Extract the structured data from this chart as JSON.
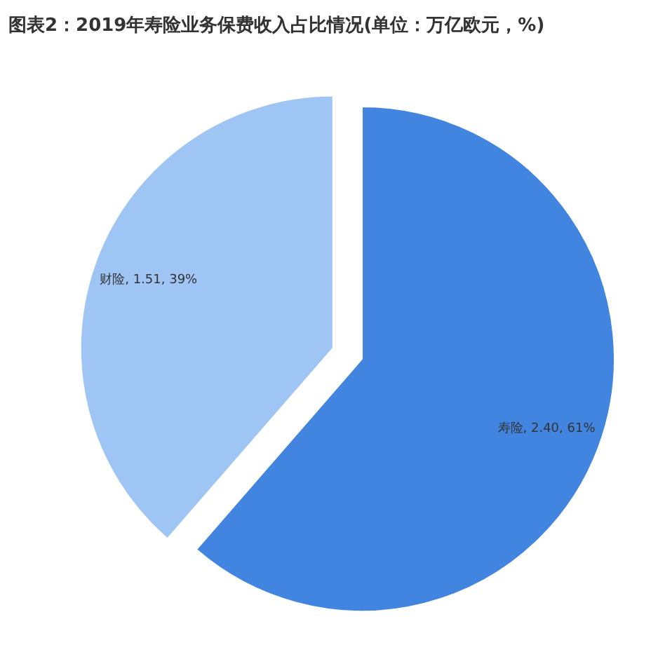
{
  "chart_data": {
    "type": "pie",
    "title": "图表2：2019年寿险业务保费收入占比情况(单位：万亿欧元，%)",
    "categories": [
      "寿险",
      "财险"
    ],
    "values": [
      2.4,
      1.51
    ],
    "value_labels": [
      "2.40, 61%",
      "1.51, 39%"
    ],
    "colors": [
      "#4285e0",
      "#9fc5f5"
    ],
    "legend": false
  }
}
